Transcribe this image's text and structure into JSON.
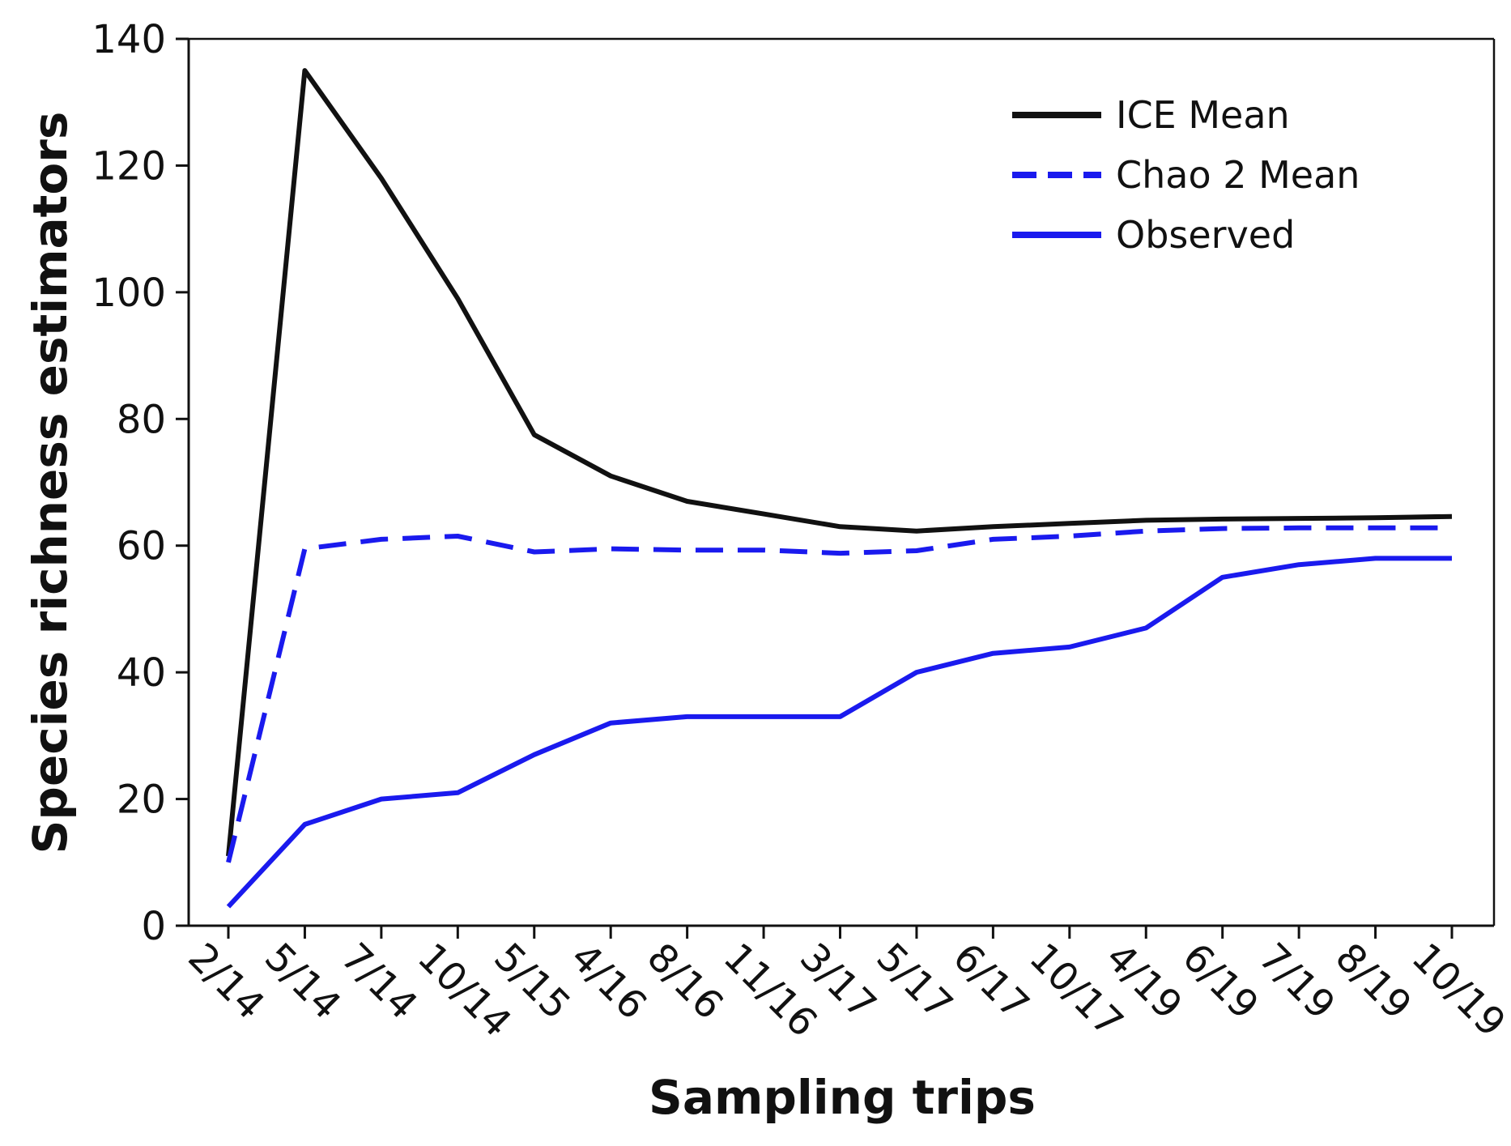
{
  "chart_data": {
    "type": "line",
    "title": "",
    "xlabel": "Sampling trips",
    "ylabel": "Species richness estimators",
    "ylim": [
      0,
      140
    ],
    "yticks": [
      0,
      20,
      40,
      60,
      80,
      100,
      120,
      140
    ],
    "categories": [
      "2/14",
      "5/14",
      "7/14",
      "10/14",
      "5/15",
      "4/16",
      "8/16",
      "11/16",
      "3/17",
      "5/17",
      "6/17",
      "10/17",
      "4/19",
      "6/19",
      "7/19",
      "8/19",
      "10/19"
    ],
    "legend_position": "top-right",
    "series": [
      {
        "name": "ICE Mean",
        "color": "#111111",
        "dash": "solid",
        "values": [
          11,
          135,
          118,
          99,
          77.5,
          71,
          67,
          65,
          63,
          62.3,
          63,
          63.5,
          64,
          64.2,
          64.3,
          64.4,
          64.6
        ]
      },
      {
        "name": "Chao 2 Mean",
        "color": "#1a1aee",
        "dash": "dashed",
        "values": [
          10,
          59.5,
          61,
          61.5,
          59,
          59.5,
          59.3,
          59.3,
          58.8,
          59.2,
          61,
          61.5,
          62.3,
          62.7,
          62.8,
          62.8,
          62.8
        ]
      },
      {
        "name": "Observed",
        "color": "#1a1aee",
        "dash": "solid",
        "values": [
          3,
          16,
          20,
          21,
          27,
          32,
          33,
          33,
          33,
          40,
          43,
          44,
          47,
          55,
          57,
          58,
          58
        ]
      }
    ]
  }
}
